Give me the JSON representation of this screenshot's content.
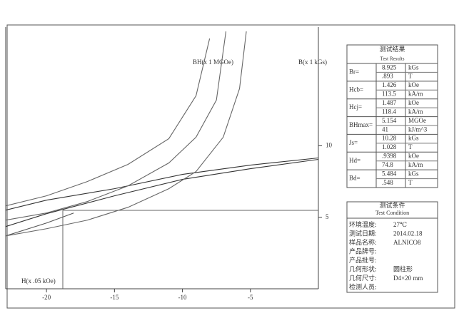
{
  "chart_data": {
    "type": "line",
    "x_label": "H(x .05 kOe)",
    "y_label": "B(x 1 kGs)",
    "y_label_2": "BH(x 1 MGOe)",
    "xlim": [
      -23,
      0
    ],
    "ylim": [
      0,
      18.3
    ],
    "xticks": [
      -20,
      -15,
      -10,
      -5
    ],
    "yticks": [
      5,
      10
    ],
    "series": [
      {
        "color": "#333333",
        "x": [
          -23,
          -20,
          -15,
          -10,
          -5,
          0
        ],
        "values": [
          5.5,
          6.2,
          7.0,
          8.0,
          8.65,
          9.15
        ]
      },
      {
        "color": "#333333",
        "x": [
          -23,
          -20,
          -15,
          -10,
          -5,
          0
        ],
        "values": [
          4.35,
          5.25,
          6.5,
          7.65,
          8.4,
          9.05
        ]
      },
      {
        "color": "#555555",
        "x": [
          -23,
          -20,
          -18
        ],
        "values": [
          3.7,
          4.6,
          5.3
        ]
      },
      {
        "color": "#666666",
        "x": [
          -23,
          -20,
          -17,
          -14,
          -11,
          -9,
          -8
        ],
        "values": [
          5.8,
          6.5,
          7.5,
          8.7,
          10.5,
          13.5,
          17.5
        ]
      },
      {
        "color": "#666666",
        "x": [
          -23,
          -20,
          -17,
          -14,
          -11,
          -9,
          -7.5,
          -6.8
        ],
        "values": [
          4.8,
          5.3,
          6.1,
          7.2,
          8.8,
          10.6,
          13.2,
          18
        ]
      },
      {
        "color": "#666666",
        "x": [
          -23,
          -20,
          -17,
          -14,
          -11,
          -9,
          -7,
          -5.8,
          -5.3
        ],
        "values": [
          3.7,
          4.2,
          4.8,
          5.7,
          7.0,
          8.2,
          10.6,
          14,
          18
        ]
      }
    ],
    "marker": {
      "x": -18.8,
      "y": 5.484
    }
  },
  "results": {
    "title": "测试结果",
    "subtitle": "Test Results",
    "rows": [
      {
        "label": "Br=",
        "v1": "8.925",
        "u1": "kGs",
        "v2": ".893",
        "u2": "T"
      },
      {
        "label": "Hcb=",
        "v1": "1.426",
        "u1": "kOe",
        "v2": "113.5",
        "u2": "kA/m"
      },
      {
        "label": "Hcj=",
        "v1": "1.487",
        "u1": "kOe",
        "v2": "118.4",
        "u2": "kA/m"
      },
      {
        "label": "BHmax=",
        "v1": "5.154",
        "u1": "MGOe",
        "v2": "41",
        "u2": "kJ/m^3"
      },
      {
        "label": "Js=",
        "v1": "10.28",
        "u1": "kGs",
        "v2": "1.028",
        "u2": "T"
      },
      {
        "label": "Hd=",
        "v1": ".9398",
        "u1": "kOe",
        "v2": "74.8",
        "u2": "kA/m"
      },
      {
        "label": "Bd=",
        "v1": "5.484",
        "u1": "kGs",
        "v2": ".548",
        "u2": "T"
      }
    ]
  },
  "conditions": {
    "title": "测试条件",
    "subtitle": "Test Condition",
    "rows": [
      {
        "label": "环境温度:",
        "value": "27℃"
      },
      {
        "label": "测试日期:",
        "value": "2014.02.18"
      },
      {
        "label": "样品名称:",
        "value": "ALNICO8"
      },
      {
        "label": "产品牌号:"
      },
      {
        "label": "产品批号:"
      },
      {
        "label": "几何形状:",
        "value": "圆柱形"
      },
      {
        "label": "几何尺寸:",
        "value": "D4×20 mm"
      },
      {
        "label": "检测人员:"
      }
    ]
  }
}
